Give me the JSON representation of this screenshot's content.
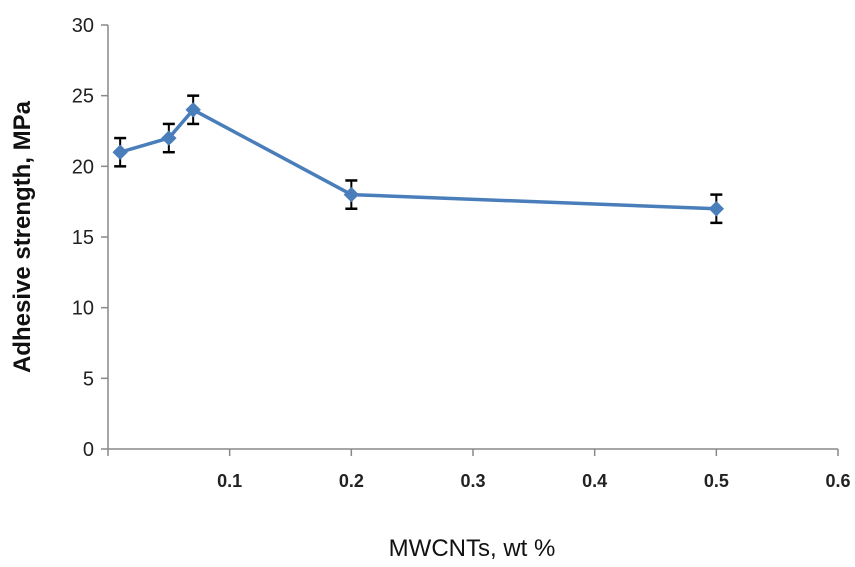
{
  "chart_data": {
    "type": "line",
    "title": "",
    "xlabel": "MWCNTs,  wt %",
    "ylabel": "Adhesive strength, MPa",
    "xlim": [
      0,
      0.6
    ],
    "ylim": [
      0,
      30
    ],
    "xticks": [
      "0.1",
      "0.2",
      "0.3",
      "0.4",
      "0.5",
      "0.6"
    ],
    "yticks": [
      "0",
      "5",
      "10",
      "15",
      "20",
      "25",
      "30"
    ],
    "grid": false,
    "legend": "none",
    "series": [
      {
        "x": [
          0.01,
          0.05,
          0.07,
          0.2,
          0.5
        ],
        "y": [
          21,
          22,
          24,
          18,
          17
        ],
        "error": [
          1,
          1,
          1,
          1,
          1
        ],
        "color": "#4a7ebb",
        "marker": "diamond"
      }
    ]
  }
}
